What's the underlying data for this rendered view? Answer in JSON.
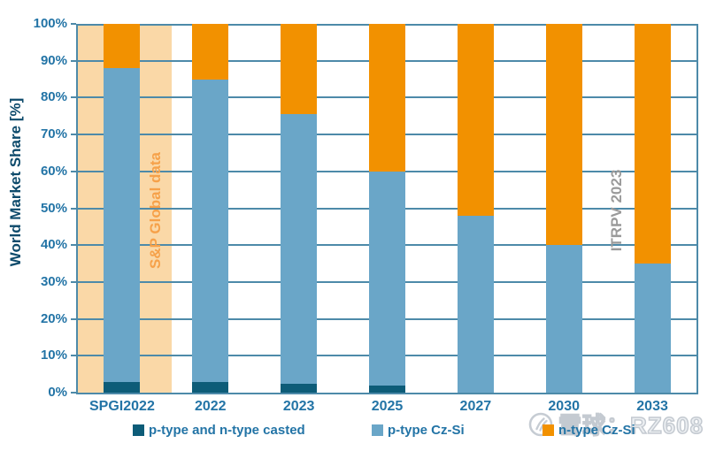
{
  "chart_data": {
    "type": "bar",
    "stacked": true,
    "title": "",
    "xlabel": "",
    "ylabel": "World Market Share [%]",
    "ylim": [
      0,
      100
    ],
    "ytick_step": 10,
    "ytick_suffix": "%",
    "grid": true,
    "legend_position": "bottom",
    "categories": [
      "SPGI2022",
      "2022",
      "2023",
      "2025",
      "2027",
      "2030",
      "2033"
    ],
    "series": [
      {
        "name": "p-type and n-type casted",
        "color": "#0d5c78",
        "values": [
          3,
          3,
          2.5,
          2,
          0,
          0,
          0
        ]
      },
      {
        "name": "p-type Cz-Si",
        "color": "#6aa6c8",
        "values": [
          85,
          82,
          73,
          58,
          48,
          40,
          35
        ]
      },
      {
        "name": "n-type Cz-Si",
        "color": "#f29100",
        "values": [
          12,
          15,
          24.5,
          40,
          52,
          60,
          65
        ]
      }
    ],
    "highlight_band": {
      "category": "SPGI2022",
      "color": "#fad8a7"
    },
    "annotations": [
      {
        "id": "sp-global",
        "text": "S&P Global data",
        "color": "#f6a149"
      },
      {
        "id": "itrpv",
        "text": "ITRPV 2023",
        "color": "#9a9a9a"
      }
    ]
  },
  "watermark": {
    "logo": "xueqiu-logo-icon",
    "text": "雪球：RZ608"
  }
}
